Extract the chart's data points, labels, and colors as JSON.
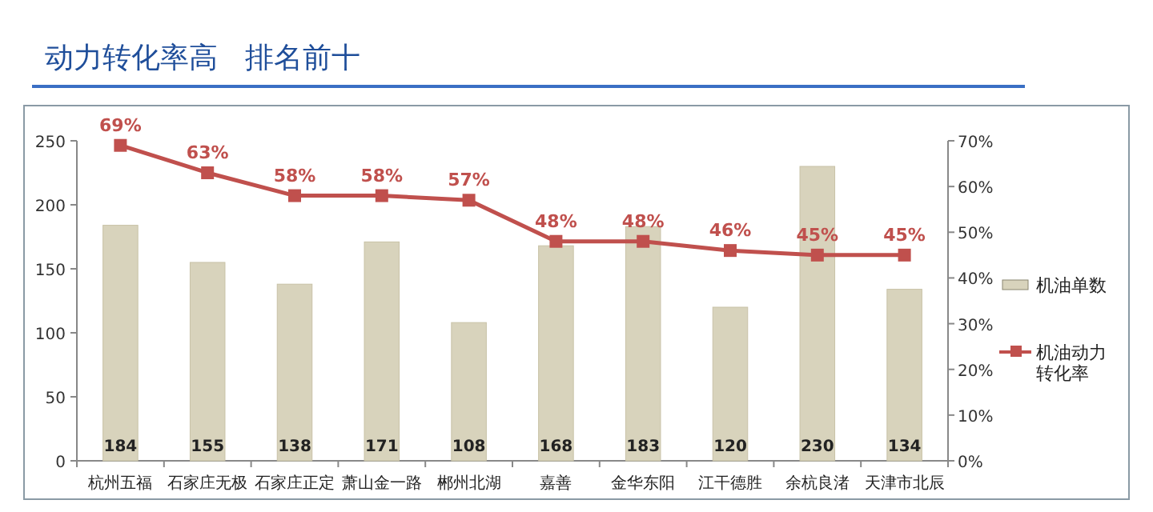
{
  "chart_data": {
    "type": "bar",
    "title": "动力转化率高   排名前十",
    "categories": [
      "杭州五福",
      "石家庄无极",
      "石家庄正定",
      "萧山金一路",
      "郴州北湖",
      "嘉善",
      "金华东阳",
      "江干德胜",
      "余杭良渚",
      "天津市北辰"
    ],
    "series": [
      {
        "name": "机油单数",
        "color": "#d8d3bc",
        "values": [
          184,
          155,
          138,
          171,
          108,
          168,
          183,
          120,
          230,
          134
        ],
        "value_labels": [
          "184",
          "155",
          "138",
          "171",
          "108",
          "168",
          "183",
          "120",
          "230",
          "134"
        ]
      },
      {
        "name": "机油动力转化率",
        "type": "line",
        "axis": "y2",
        "color": "#c0504d",
        "marker": "square",
        "values": [
          69,
          63,
          58,
          58,
          57,
          48,
          48,
          46,
          45,
          45
        ],
        "value_labels": [
          "69%",
          "63%",
          "58%",
          "58%",
          "57%",
          "48%",
          "48%",
          "46%",
          "45%",
          "45%"
        ]
      }
    ],
    "ylim": [
      0,
      250
    ],
    "yticks": [
      0,
      50,
      100,
      150,
      200,
      250
    ],
    "y2lim": [
      0,
      70
    ],
    "y2ticks": [
      {
        "value": 0,
        "label": "0%"
      },
      {
        "value": 10,
        "label": "10%"
      },
      {
        "value": 20,
        "label": "20%"
      },
      {
        "value": 30,
        "label": "30%"
      },
      {
        "value": 40,
        "label": "40%"
      },
      {
        "value": 50,
        "label": "50%"
      },
      {
        "value": 60,
        "label": "60%"
      },
      {
        "value": 70,
        "label": "70%"
      }
    ],
    "legend": "right"
  }
}
